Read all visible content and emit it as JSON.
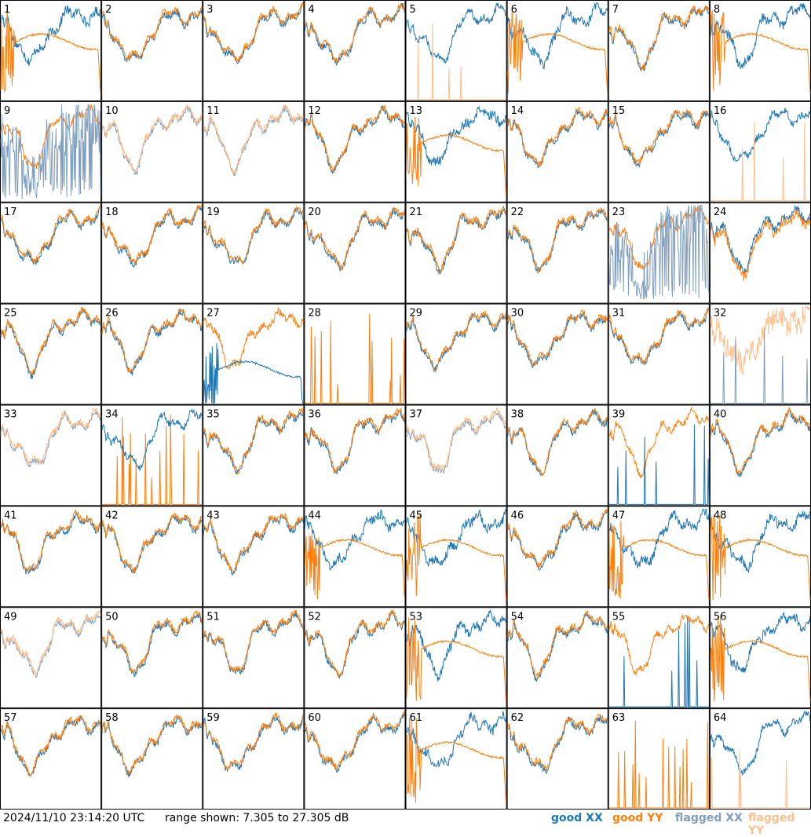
{
  "chart_data": {
    "type": "line",
    "layout": "8x8 small multiples",
    "panels": [
      "1",
      "2",
      "3",
      "4",
      "5",
      "6",
      "7",
      "8",
      "9",
      "10",
      "11",
      "12",
      "13",
      "14",
      "15",
      "16",
      "17",
      "18",
      "19",
      "20",
      "21",
      "22",
      "23",
      "24",
      "25",
      "26",
      "27",
      "28",
      "29",
      "30",
      "31",
      "32",
      "33",
      "34",
      "35",
      "36",
      "37",
      "38",
      "39",
      "40",
      "41",
      "42",
      "43",
      "44",
      "45",
      "46",
      "47",
      "48",
      "49",
      "50",
      "51",
      "52",
      "53",
      "54",
      "55",
      "56",
      "57",
      "58",
      "59",
      "60",
      "61",
      "62",
      "63",
      "64"
    ],
    "series_legend": [
      {
        "name": "good XX",
        "color": "#1f77b4"
      },
      {
        "name": "good YY",
        "color": "#ff7f0e"
      },
      {
        "name": "flagged XX",
        "color": "#7f9fbf"
      },
      {
        "name": "flagged YY",
        "color": "#ffbf8a"
      }
    ],
    "y_range_db": [
      7.305,
      27.305
    ],
    "panel_styles": {
      "normal": [
        "2",
        "3",
        "4",
        "7",
        "10",
        "11",
        "14",
        "15",
        "17",
        "18",
        "19",
        "20",
        "21",
        "22",
        "25",
        "26",
        "29",
        "30",
        "31",
        "33",
        "35",
        "36",
        "37",
        "38",
        "40",
        "41",
        "42",
        "43",
        "46",
        "49",
        "50",
        "51",
        "52",
        "54",
        "57",
        "58",
        "59",
        "60",
        "62"
      ],
      "flagged_pair": [
        "10",
        "11",
        "33",
        "37",
        "49"
      ],
      "flat_yy": [
        "1",
        "6",
        "8",
        "13",
        "44",
        "45",
        "47",
        "48",
        "53",
        "56",
        "61"
      ],
      "flat_xx": [
        "27"
      ],
      "spiky_yy": [
        "5",
        "16",
        "64"
      ],
      "spiky_xx": [
        "39",
        "55"
      ],
      "flagged_xx_spiky": [
        "9",
        "23"
      ],
      "flagged_yy_noise": [
        "32"
      ],
      "dead_yy": [
        "28",
        "34",
        "63"
      ],
      "xx_only_spiky": [
        "24"
      ]
    }
  },
  "footer": {
    "timestamp": "2024/11/10 23:14:20 UTC",
    "range_text": "range shown: 7.305 to 27.305 dB",
    "legend_good_xx": "good XX",
    "legend_good_yy": "good YY",
    "legend_flagged_xx": "flagged XX",
    "legend_flagged_yy": "flagged YY"
  }
}
